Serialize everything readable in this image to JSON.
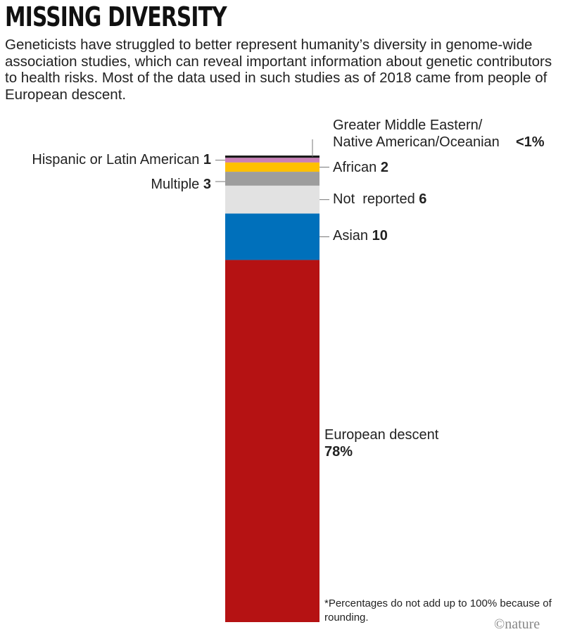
{
  "title": "MISSING DIVERSITY",
  "subtitle": "Geneticists have struggled to better represent humanity’s diversity in genome-wide association studies, which can reveal important information about genetic contributors to health risks. Most of the data used in such studies as of 2018 came from people of European descent.",
  "chart_data": {
    "type": "bar",
    "stacked": true,
    "unit": "%",
    "series": [
      {
        "name": "Greater Middle Eastern/ Native American/Oceanian",
        "label_value": "<1%",
        "value": 0.5,
        "color": "#1a1a1a"
      },
      {
        "name": "Hispanic or Latin American",
        "label_value": "1",
        "value": 1,
        "color": "#c97fb8"
      },
      {
        "name": "African",
        "label_value": "2",
        "value": 2,
        "color": "#ffc000"
      },
      {
        "name": "Multiple",
        "label_value": "3",
        "value": 3,
        "color": "#9d9d9d"
      },
      {
        "name": "Not  reported",
        "label_value": "6",
        "value": 6,
        "color": "#e2e2e2"
      },
      {
        "name": "Asian",
        "label_value": "10",
        "value": 10,
        "color": "#0070bb"
      },
      {
        "name": "European descent",
        "label_value": "78%",
        "value": 78,
        "color": "#b51213"
      }
    ]
  },
  "footnote": "*Percentages do not add up to 100% because of rounding.",
  "credit": "©nature"
}
